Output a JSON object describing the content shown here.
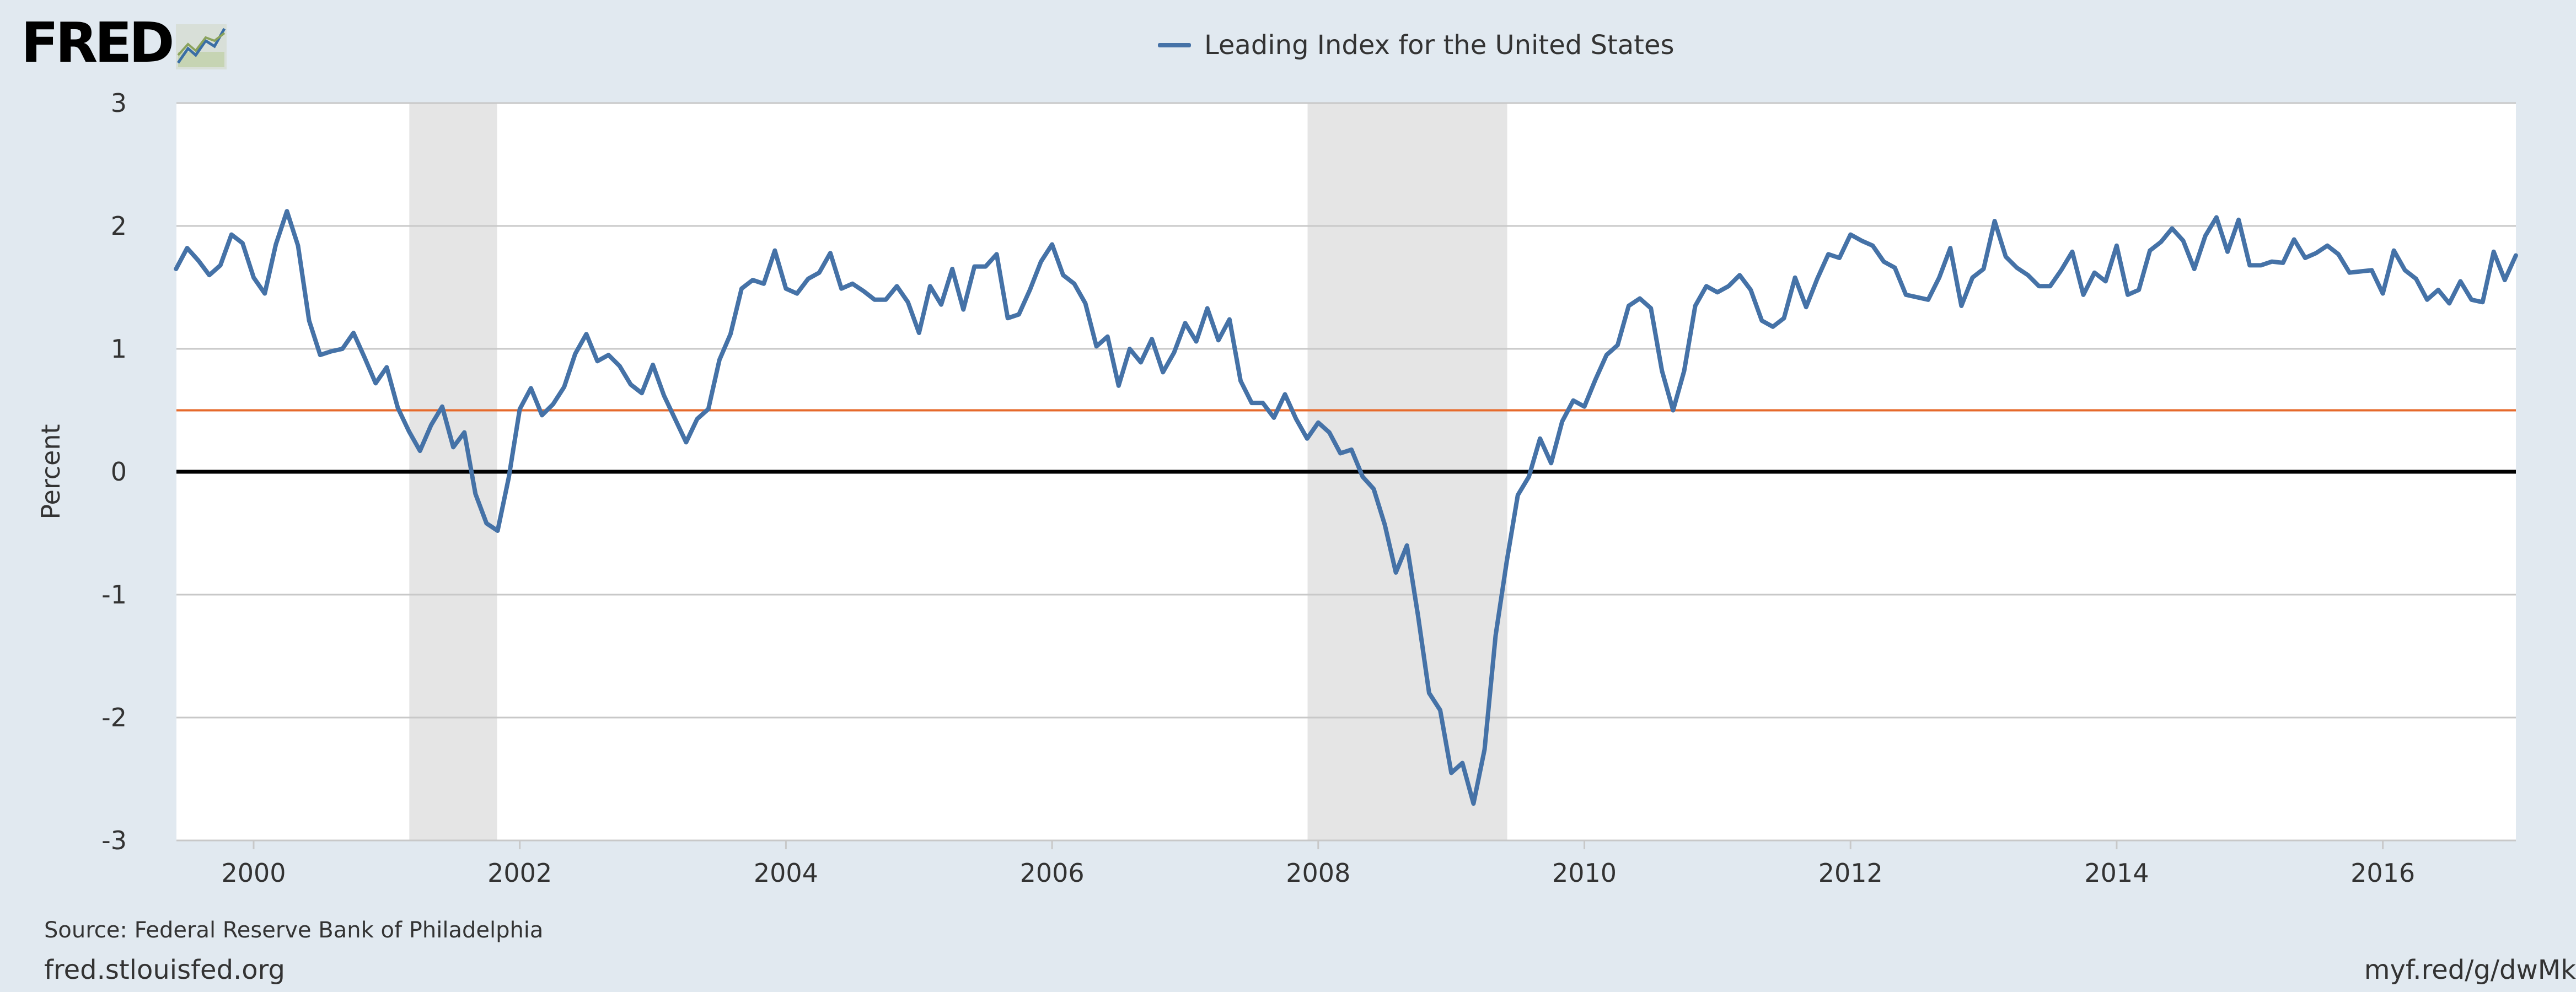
{
  "logo": {
    "text": "FRED",
    "icon": "line-chart-icon"
  },
  "chart_data": {
    "type": "line",
    "title": "Leading Index for the United States",
    "ylabel": "Percent",
    "xlabel": "",
    "ylim": [
      -3,
      3
    ],
    "xlim": [
      1999.42,
      2017.0
    ],
    "yticks": [
      3,
      2,
      1,
      0,
      -1,
      -2,
      -3
    ],
    "xticks": [
      2000,
      2002,
      2004,
      2006,
      2008,
      2010,
      2012,
      2014,
      2016
    ],
    "grid": true,
    "legend_position": "top-center",
    "reference_lines": [
      {
        "name": "threshold",
        "value": 0.5,
        "color": "#e66a2c"
      },
      {
        "name": "zero",
        "value": 0,
        "color": "#000000"
      }
    ],
    "recessions": [
      {
        "start": 2001.17,
        "end": 2001.83
      },
      {
        "start": 2007.92,
        "end": 2009.42
      }
    ],
    "series": [
      {
        "name": "Leading Index for the United States",
        "color": "#4572a7",
        "start": 1999.417,
        "step": 0.08333,
        "values": [
          1.65,
          1.82,
          1.72,
          1.6,
          1.68,
          1.93,
          1.86,
          1.58,
          1.45,
          1.85,
          2.12,
          1.84,
          1.23,
          0.95,
          0.98,
          1.0,
          1.13,
          0.93,
          0.72,
          0.85,
          0.52,
          0.33,
          0.17,
          0.38,
          0.53,
          0.2,
          0.32,
          -0.18,
          -0.42,
          -0.48,
          -0.05,
          0.51,
          0.68,
          0.46,
          0.55,
          0.69,
          0.96,
          1.12,
          0.9,
          0.95,
          0.86,
          0.71,
          0.64,
          0.87,
          0.62,
          0.43,
          0.24,
          0.43,
          0.51,
          0.91,
          1.12,
          1.49,
          1.56,
          1.53,
          1.8,
          1.49,
          1.45,
          1.57,
          1.62,
          1.78,
          1.49,
          1.53,
          1.47,
          1.4,
          1.4,
          1.51,
          1.38,
          1.13,
          1.51,
          1.36,
          1.65,
          1.32,
          1.67,
          1.67,
          1.77,
          1.25,
          1.28,
          1.48,
          1.71,
          1.85,
          1.6,
          1.53,
          1.37,
          1.02,
          1.1,
          0.7,
          1.0,
          0.89,
          1.08,
          0.81,
          0.97,
          1.21,
          1.06,
          1.33,
          1.07,
          1.24,
          0.74,
          0.56,
          0.56,
          0.44,
          0.63,
          0.43,
          0.27,
          0.4,
          0.32,
          0.15,
          0.18,
          -0.04,
          -0.14,
          -0.43,
          -0.82,
          -0.6,
          -1.17,
          -1.8,
          -1.94,
          -2.45,
          -2.37,
          -2.7,
          -2.26,
          -1.33,
          -0.73,
          -0.19,
          -0.04,
          0.27,
          0.07,
          0.41,
          0.58,
          0.53,
          0.75,
          0.95,
          1.03,
          1.35,
          1.41,
          1.33,
          0.82,
          0.5,
          0.82,
          1.35,
          1.51,
          1.46,
          1.51,
          1.6,
          1.48,
          1.23,
          1.18,
          1.25,
          1.58,
          1.34,
          1.57,
          1.77,
          1.74,
          1.93,
          1.88,
          1.84,
          1.71,
          1.66,
          1.44,
          1.42,
          1.4,
          1.58,
          1.82,
          1.35,
          1.58,
          1.65,
          2.04,
          1.75,
          1.66,
          1.6,
          1.51,
          1.51,
          1.64,
          1.79,
          1.44,
          1.62,
          1.55,
          1.84,
          1.44,
          1.48,
          1.8,
          1.87,
          1.98,
          1.88,
          1.65,
          1.92,
          2.07,
          1.79,
          2.05,
          1.68,
          1.68,
          1.71,
          1.7,
          1.89,
          1.74,
          1.78,
          1.84,
          1.77,
          1.62,
          1.63,
          1.64,
          1.45,
          1.8,
          1.64,
          1.57,
          1.4,
          1.48,
          1.37,
          1.55,
          1.4,
          1.38,
          1.79,
          1.56,
          1.76
        ]
      }
    ]
  },
  "footer": {
    "source": "Source: Federal Reserve Bank of Philadelphia",
    "site": "fred.stlouisfed.org",
    "short_url": "myf.red/g/dwMk"
  }
}
